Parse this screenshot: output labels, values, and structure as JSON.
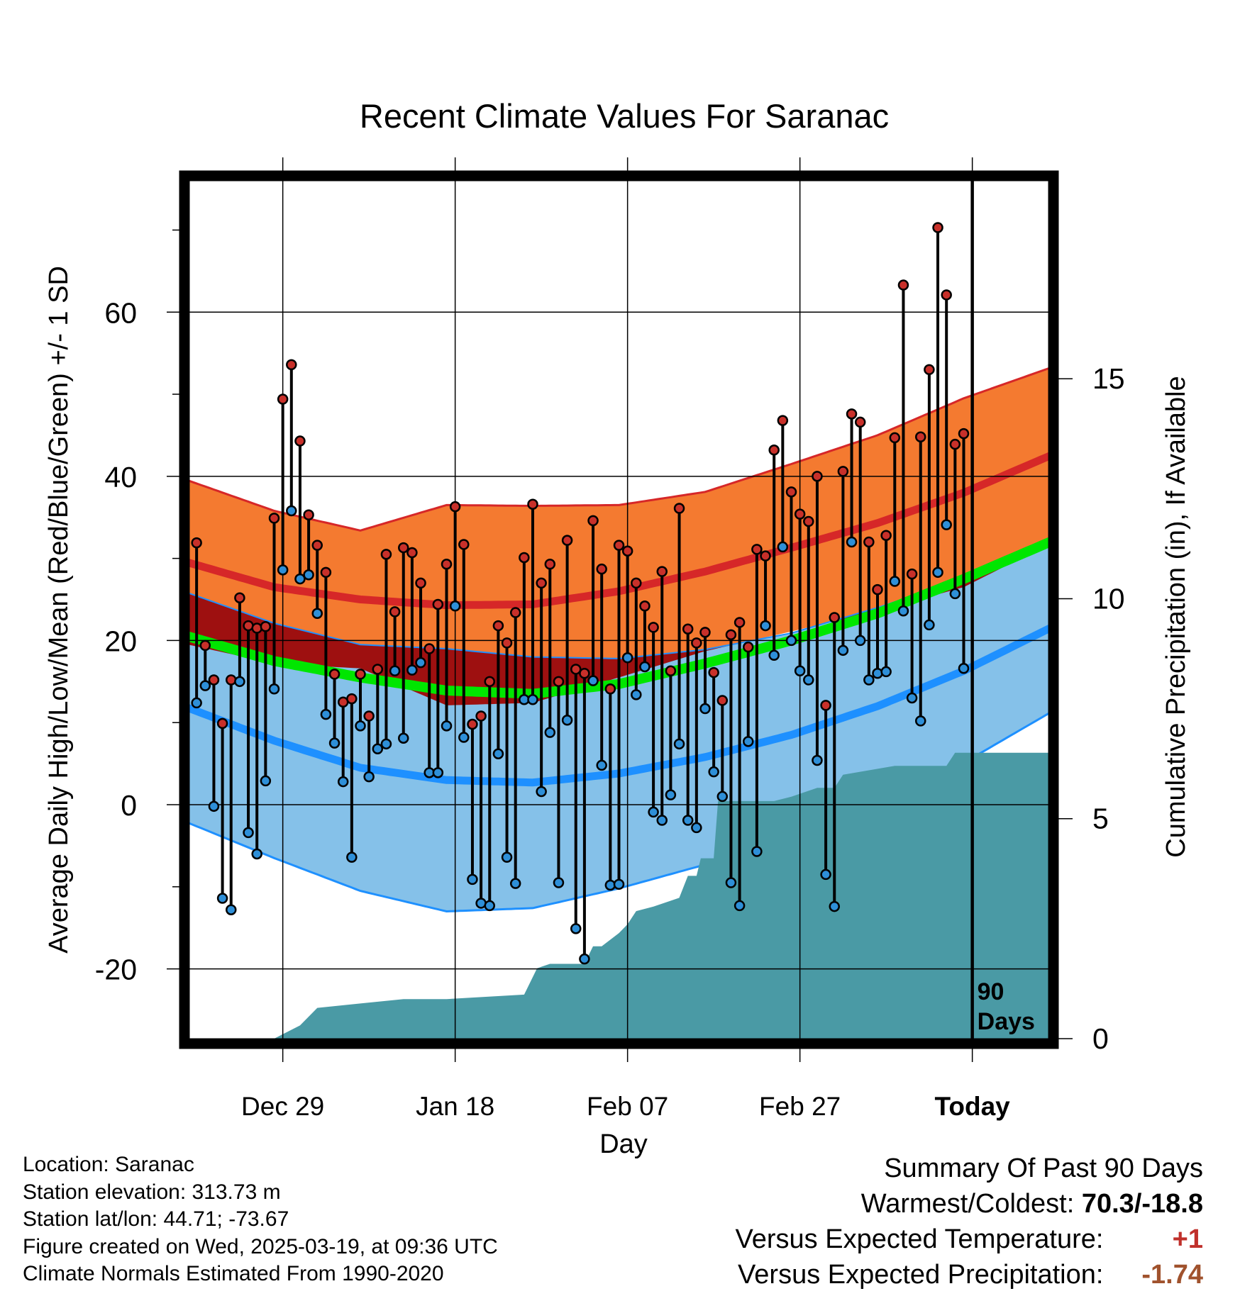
{
  "chart_data": {
    "type": "line",
    "title": "Recent Climate Values For Saranac",
    "xlabel": "Day",
    "ylabel": "Average Daily High/Low/Mean (Red/Blue/Green) +/- 1 SD",
    "y2label": "Cumulative Precipitation (in), If Available",
    "x_tick_labels": [
      "Dec 29",
      "Jan 18",
      "Feb 07",
      "Feb 27",
      "Today"
    ],
    "x_tick_days": [
      10,
      30,
      50,
      70,
      90
    ],
    "x_range_days": [
      -1,
      99
    ],
    "ylim": [
      -28.5,
      76
    ],
    "y_ticks": [
      -20,
      0,
      20,
      40,
      60
    ],
    "y2lim": [
      0,
      19.5
    ],
    "y2_ticks": [
      0,
      5,
      10,
      15
    ],
    "grid": true,
    "today_day": 90,
    "today_label_line1": "90",
    "today_label_line2": "Days",
    "colors": {
      "high_band": "#f47a30",
      "high_line": "#d62728",
      "low_band": "#85c1e9",
      "low_line": "#1e90ff",
      "mean_line": "#00e600",
      "overlap_band": "#9e1010",
      "precip_fill": "#4a9aa5",
      "high_point": "#c8302a",
      "low_point": "#2e8fd8"
    },
    "normals": {
      "days": [
        -1,
        9,
        19,
        29,
        39,
        49,
        59,
        69,
        79,
        89,
        99
      ],
      "high_mean": [
        29.5,
        26.5,
        25.0,
        24.3,
        24.4,
        26.0,
        28.4,
        31.3,
        34.3,
        38.0,
        42.5
      ],
      "high_sd": [
        10.0,
        9.3,
        8.4,
        12.2,
        12.0,
        10.5,
        9.7,
        10.2,
        10.7,
        11.5,
        10.7
      ],
      "low_mean": [
        11.8,
        7.8,
        4.5,
        3.0,
        2.7,
        3.8,
        5.8,
        8.5,
        12.0,
        16.3,
        21.5
      ],
      "low_sd": [
        14.0,
        14.3,
        15.0,
        16.0,
        15.3,
        14.0,
        13.1,
        12.4,
        12.0,
        11.2,
        10.3
      ],
      "mean": [
        20.5,
        17.5,
        15.5,
        13.9,
        13.5,
        14.7,
        17.2,
        20.0,
        23.3,
        27.5,
        32.0
      ]
    },
    "series": [
      {
        "name": "Daily High",
        "days": [
          0,
          1,
          2,
          3,
          4,
          5,
          6,
          7,
          8,
          9,
          10,
          11,
          12,
          13,
          14,
          15,
          16,
          17,
          18,
          19,
          20,
          21,
          22,
          23,
          24,
          25,
          26,
          27,
          28,
          29,
          30,
          31,
          32,
          33,
          34,
          35,
          36,
          37,
          38,
          39,
          40,
          41,
          42,
          43,
          44,
          45,
          46,
          47,
          48,
          49,
          50,
          51,
          52,
          53,
          54,
          55,
          56,
          57,
          58,
          59,
          60,
          61,
          62,
          63,
          64,
          65,
          66,
          67,
          68,
          69,
          70,
          71,
          72,
          73,
          74,
          75,
          76,
          77,
          78,
          79,
          80,
          81,
          82,
          83,
          84,
          85,
          86,
          87,
          88,
          89
        ],
        "values": [
          31.9,
          19.4,
          15.2,
          9.9,
          15.2,
          25.2,
          21.8,
          21.5,
          21.7,
          34.9,
          49.4,
          53.6,
          44.3,
          35.3,
          31.6,
          28.3,
          15.9,
          12.5,
          12.9,
          15.9,
          10.8,
          16.5,
          30.5,
          23.5,
          31.3,
          30.7,
          27.0,
          19.0,
          24.4,
          29.3,
          36.3,
          31.7,
          9.8,
          10.8,
          15.0,
          21.8,
          19.7,
          23.4,
          30.1,
          36.6,
          27.0,
          29.3,
          15.0,
          32.2,
          16.5,
          16.0,
          34.6,
          28.7,
          14.1,
          31.6,
          30.9,
          27.0,
          24.2,
          21.6,
          28.4,
          16.3,
          36.1,
          21.4,
          19.7,
          21.0,
          16.1,
          12.7,
          20.7,
          22.2,
          19.2,
          31.1,
          30.3,
          43.2,
          46.8,
          38.1,
          35.4,
          34.5,
          40.0,
          12.1,
          22.8,
          40.6,
          47.6,
          46.6,
          32.0,
          26.2,
          32.8,
          44.7,
          63.3,
          28.1,
          44.8,
          53.0,
          70.3,
          62.1,
          43.9,
          45.2
        ]
      },
      {
        "name": "Daily Low",
        "days": [
          0,
          1,
          2,
          3,
          4,
          5,
          6,
          7,
          8,
          9,
          10,
          11,
          12,
          13,
          14,
          15,
          16,
          17,
          18,
          19,
          20,
          21,
          22,
          23,
          24,
          25,
          26,
          27,
          28,
          29,
          30,
          31,
          32,
          33,
          34,
          35,
          36,
          37,
          38,
          39,
          40,
          41,
          42,
          43,
          44,
          45,
          46,
          47,
          48,
          49,
          50,
          51,
          52,
          53,
          54,
          55,
          56,
          57,
          58,
          59,
          60,
          61,
          62,
          63,
          64,
          65,
          66,
          67,
          68,
          69,
          70,
          71,
          72,
          73,
          74,
          75,
          76,
          77,
          78,
          79,
          80,
          81,
          82,
          83,
          84,
          85,
          86,
          87,
          88,
          89
        ],
        "values": [
          12.4,
          14.5,
          -0.2,
          -11.4,
          -12.8,
          15.0,
          -3.4,
          -6.0,
          2.9,
          14.1,
          28.6,
          35.8,
          27.5,
          28.0,
          23.3,
          11.0,
          7.5,
          2.8,
          -6.4,
          9.6,
          3.4,
          6.8,
          7.4,
          16.3,
          8.1,
          16.4,
          17.3,
          3.9,
          3.9,
          9.6,
          24.2,
          8.2,
          -9.1,
          -12.0,
          -12.3,
          6.2,
          -6.4,
          -9.6,
          12.8,
          12.8,
          1.6,
          8.8,
          -9.5,
          10.3,
          -15.1,
          -18.8,
          15.1,
          4.8,
          -9.8,
          -9.7,
          17.9,
          13.4,
          16.8,
          -0.9,
          -1.9,
          1.2,
          7.4,
          -1.9,
          -2.8,
          11.7,
          4.0,
          1.0,
          -9.5,
          -12.3,
          7.7,
          -5.7,
          21.8,
          18.2,
          31.4,
          20.0,
          16.3,
          15.2,
          5.4,
          -8.5,
          -12.4,
          18.8,
          32.0,
          20.0,
          15.2,
          16.0,
          16.2,
          27.2,
          23.6,
          13.0,
          10.2,
          21.9,
          28.3,
          34.1,
          25.7,
          16.6
        ]
      }
    ],
    "precipitation": {
      "name": "Cumulative Precipitation",
      "days": [
        -0.5,
        9,
        10,
        12,
        13,
        14,
        19,
        24,
        29,
        38,
        39.5,
        41,
        45,
        46,
        47,
        49,
        50,
        51,
        53,
        56,
        57,
        58,
        58.5,
        60,
        60.5,
        67,
        69,
        72,
        74,
        75,
        78,
        81,
        87,
        88,
        89,
        90,
        99
      ],
      "values": [
        0,
        0,
        0.1,
        0.3,
        0.5,
        0.7,
        0.8,
        0.9,
        0.9,
        1.0,
        1.6,
        1.7,
        1.7,
        2.1,
        2.1,
        2.4,
        2.6,
        2.9,
        3.0,
        3.2,
        3.7,
        3.7,
        4.1,
        4.1,
        5.4,
        5.4,
        5.5,
        5.7,
        5.7,
        6.0,
        6.1,
        6.2,
        6.2,
        6.5,
        6.5,
        6.5,
        6.5
      ]
    }
  },
  "footer_left": {
    "location": "Location: Saranac",
    "elevation": "Station elevation: 313.73 m",
    "latlon": "Station lat/lon: 44.71; -73.67",
    "created": "Figure created on Wed, 2025-03-19, at 09:36 UTC",
    "normals": "Climate Normals Estimated From 1990-2020"
  },
  "summary": {
    "heading": "Summary Of Past 90 Days",
    "warmest_label": "Warmest/Coldest:",
    "warmest_value": "70.3/-18.8",
    "temp_label": "Versus Expected Temperature:",
    "temp_value": "+1",
    "temp_color": "#c0302b",
    "precip_label": "Versus Expected Precipitation:",
    "precip_value": "-1.74",
    "precip_color": "#a0522d"
  }
}
